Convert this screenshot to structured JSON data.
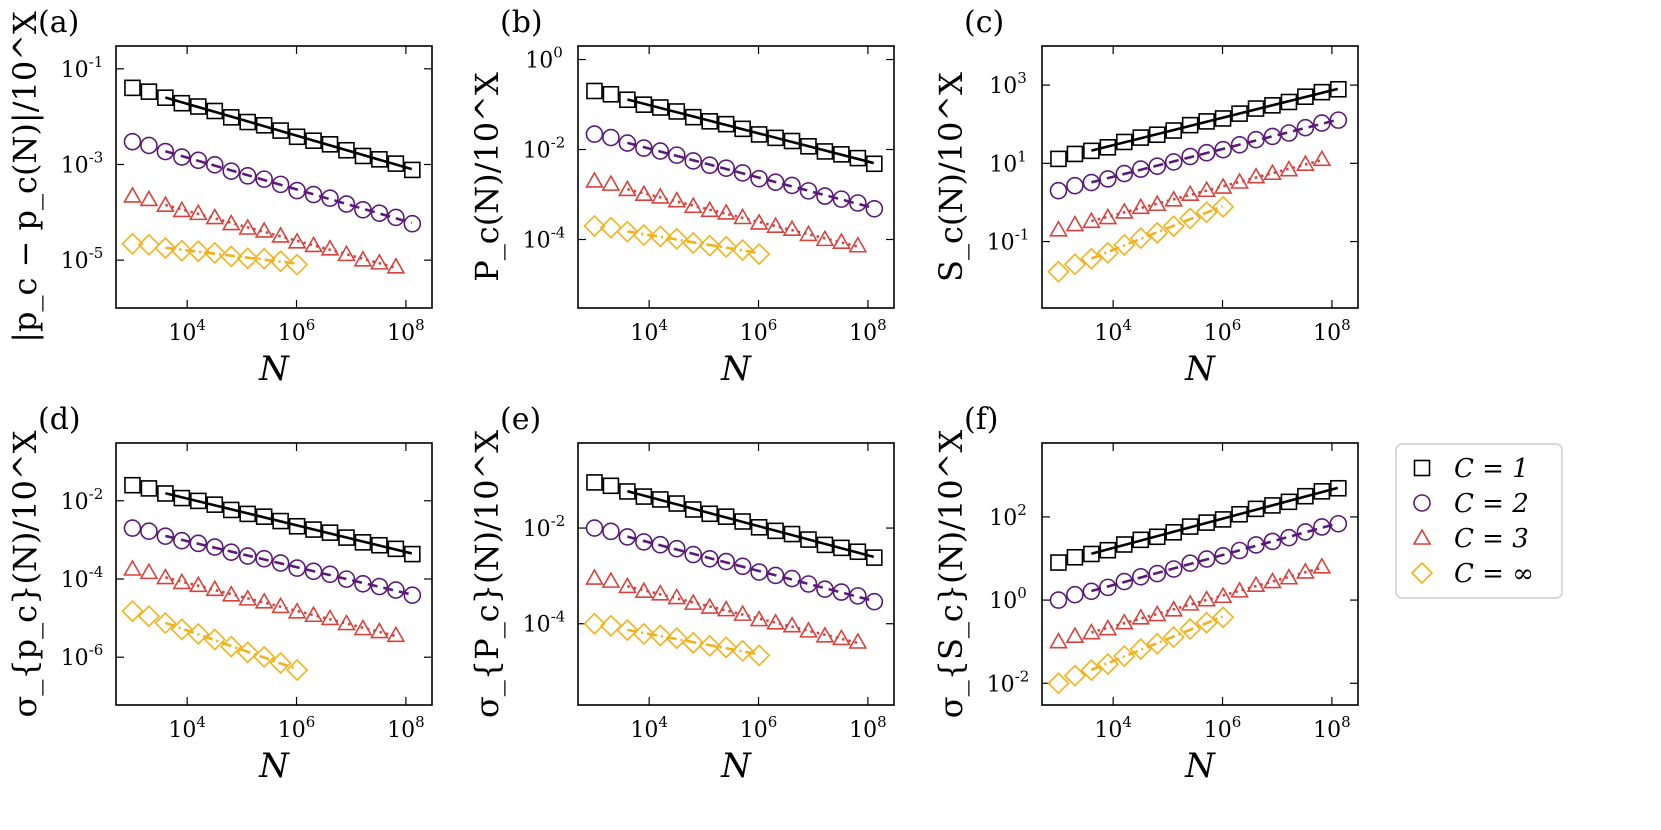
{
  "figure": {
    "x_tick_labels": [
      "10",
      "4",
      "10",
      "6",
      "10",
      "8"
    ],
    "legend": [
      {
        "key": "C1",
        "label": "C = 1",
        "color": "#000000",
        "marker": "square-icon"
      },
      {
        "key": "C2",
        "label": "C = 2",
        "color": "#5b1a7a",
        "marker": "circle-icon"
      },
      {
        "key": "C3",
        "label": "C = 3",
        "color": "#d9423c",
        "marker": "triangle-icon"
      },
      {
        "key": "Cinf",
        "label": "C = ∞",
        "color": "#f2b21c",
        "marker": "diamond-icon"
      }
    ]
  },
  "chart_data": [
    {
      "panel": "(a)",
      "type": "scatter",
      "yscale": "log",
      "xscale": "log",
      "xlabel": "N",
      "ylabel": "|p_c − p_c(N)|/10^X",
      "xlim": [
        500,
        300000000
      ],
      "ylim": [
        1e-06,
        0.3
      ],
      "ytick_labels": [
        [
          "10",
          "-1"
        ],
        [
          "10",
          "-3"
        ],
        [
          "10",
          "-5"
        ]
      ],
      "yticks": [
        0.1,
        0.001,
        1e-05
      ],
      "series": [
        {
          "key": "C1",
          "x_start": 1000,
          "x_end": 128000000,
          "y_start": 0.04,
          "y_end": 0.0008,
          "fit": "solid",
          "fit_from": 4000
        },
        {
          "key": "C2",
          "x_start": 1000,
          "x_end": 128000000,
          "y_start": 0.003,
          "y_end": 6e-05,
          "fit": "dashed",
          "fit_from": 4000
        },
        {
          "key": "C3",
          "x_start": 1000,
          "x_end": 64000000,
          "y_start": 0.00022,
          "y_end": 7e-06,
          "fit": "dotted",
          "fit_from": 4000
        },
        {
          "key": "Cinf",
          "x_start": 1000,
          "x_end": 1000000,
          "y_start": 2.2e-05,
          "y_end": 8.5e-06,
          "fit": "dashdot",
          "fit_from": 4000
        }
      ]
    },
    {
      "panel": "(b)",
      "type": "scatter",
      "yscale": "log",
      "xscale": "log",
      "xlabel": "N",
      "ylabel": "P_c(N)/10^X",
      "xlim": [
        500,
        300000000
      ],
      "ylim": [
        3e-06,
        2
      ],
      "ytick_labels": [
        [
          "10",
          "0"
        ],
        [
          "10",
          "-2"
        ],
        [
          "10",
          "-4"
        ]
      ],
      "yticks": [
        1,
        0.01,
        0.0001
      ],
      "series": [
        {
          "key": "C1",
          "x_start": 1000,
          "x_end": 128000000,
          "y_start": 0.2,
          "y_end": 0.005,
          "fit": "solid",
          "fit_from": 4000
        },
        {
          "key": "C2",
          "x_start": 1000,
          "x_end": 128000000,
          "y_start": 0.022,
          "y_end": 0.0005,
          "fit": "dashed",
          "fit_from": 4000
        },
        {
          "key": "C3",
          "x_start": 1000,
          "x_end": 64000000,
          "y_start": 0.002,
          "y_end": 7e-05,
          "fit": "dotted",
          "fit_from": 4000
        },
        {
          "key": "Cinf",
          "x_start": 1000,
          "x_end": 1000000,
          "y_start": 0.0002,
          "y_end": 5e-05,
          "fit": "dashdot",
          "fit_from": 4000
        }
      ]
    },
    {
      "panel": "(c)",
      "type": "scatter",
      "yscale": "log",
      "xscale": "log",
      "xlabel": "N",
      "ylabel": "S_c(N)/10^X",
      "xlim": [
        500,
        300000000
      ],
      "ylim": [
        0.002,
        10000
      ],
      "ytick_labels": [
        [
          "10",
          "3"
        ],
        [
          "10",
          "1"
        ],
        [
          "10",
          "-1"
        ]
      ],
      "yticks": [
        1000,
        10,
        0.1
      ],
      "series": [
        {
          "key": "C1",
          "x_start": 1000,
          "x_end": 128000000,
          "y_start": 13,
          "y_end": 800,
          "fit": "solid",
          "fit_from": 4000
        },
        {
          "key": "C2",
          "x_start": 1000,
          "x_end": 128000000,
          "y_start": 2,
          "y_end": 130,
          "fit": "dashed",
          "fit_from": 4000
        },
        {
          "key": "C3",
          "x_start": 1000,
          "x_end": 64000000,
          "y_start": 0.2,
          "y_end": 12,
          "fit": "dotted",
          "fit_from": 4000
        },
        {
          "key": "Cinf",
          "x_start": 1000,
          "x_end": 1000000,
          "y_start": 0.017,
          "y_end": 0.8,
          "fit": "dashdot",
          "fit_from": 4000
        }
      ]
    },
    {
      "panel": "(d)",
      "type": "scatter",
      "yscale": "log",
      "xscale": "log",
      "xlabel": "N",
      "ylabel": "σ_{p_c}(N)/10^X",
      "xlim": [
        500,
        300000000
      ],
      "ylim": [
        6e-08,
        0.3
      ],
      "ytick_labels": [
        [
          "10",
          "-2"
        ],
        [
          "10",
          "-4"
        ],
        [
          "10",
          "-6"
        ]
      ],
      "yticks": [
        0.01,
        0.0001,
        1e-06
      ],
      "series": [
        {
          "key": "C1",
          "x_start": 1000,
          "x_end": 128000000,
          "y_start": 0.025,
          "y_end": 0.00045,
          "fit": "solid",
          "fit_from": 4000
        },
        {
          "key": "C2",
          "x_start": 1000,
          "x_end": 128000000,
          "y_start": 0.002,
          "y_end": 4e-05,
          "fit": "dashed",
          "fit_from": 4000
        },
        {
          "key": "C3",
          "x_start": 1000,
          "x_end": 64000000,
          "y_start": 0.00018,
          "y_end": 3.5e-06,
          "fit": "dotted",
          "fit_from": 4000
        },
        {
          "key": "Cinf",
          "x_start": 1000,
          "x_end": 1000000,
          "y_start": 1.5e-05,
          "y_end": 5e-07,
          "fit": "dashdot",
          "fit_from": 4000
        }
      ]
    },
    {
      "panel": "(e)",
      "type": "scatter",
      "yscale": "log",
      "xscale": "log",
      "xlabel": "N",
      "ylabel": "σ_{P_c}(N)/10^X",
      "xlim": [
        500,
        300000000
      ],
      "ylim": [
        2e-06,
        0.6
      ],
      "ytick_labels": [
        [
          "10",
          "-2"
        ],
        [
          "10",
          "-4"
        ]
      ],
      "yticks": [
        0.01,
        0.0001
      ],
      "series": [
        {
          "key": "C1",
          "x_start": 1000,
          "x_end": 128000000,
          "y_start": 0.09,
          "y_end": 0.0025,
          "fit": "solid",
          "fit_from": 4000
        },
        {
          "key": "C2",
          "x_start": 1000,
          "x_end": 128000000,
          "y_start": 0.01,
          "y_end": 0.0003,
          "fit": "dashed",
          "fit_from": 4000
        },
        {
          "key": "C3",
          "x_start": 1000,
          "x_end": 64000000,
          "y_start": 0.0009,
          "y_end": 4e-05,
          "fit": "dotted",
          "fit_from": 4000
        },
        {
          "key": "Cinf",
          "x_start": 1000,
          "x_end": 1000000,
          "y_start": 0.0001,
          "y_end": 2.3e-05,
          "fit": "dashdot",
          "fit_from": 4000
        }
      ]
    },
    {
      "panel": "(f)",
      "type": "scatter",
      "yscale": "log",
      "xscale": "log",
      "xlabel": "N",
      "ylabel": "σ_{S_c}(N)/10^X",
      "xlim": [
        500,
        300000000
      ],
      "ylim": [
        0.003,
        6000
      ],
      "ytick_labels": [
        [
          "10",
          "2"
        ],
        [
          "10",
          "0"
        ],
        [
          "10",
          "-2"
        ]
      ],
      "yticks": [
        100,
        1,
        0.01
      ],
      "series": [
        {
          "key": "C1",
          "x_start": 1000,
          "x_end": 128000000,
          "y_start": 8,
          "y_end": 500,
          "fit": "solid",
          "fit_from": 4000
        },
        {
          "key": "C2",
          "x_start": 1000,
          "x_end": 128000000,
          "y_start": 1,
          "y_end": 70,
          "fit": "dashed",
          "fit_from": 4000
        },
        {
          "key": "C3",
          "x_start": 1000,
          "x_end": 64000000,
          "y_start": 0.1,
          "y_end": 6,
          "fit": "dotted",
          "fit_from": 4000
        },
        {
          "key": "Cinf",
          "x_start": 1000,
          "x_end": 1000000,
          "y_start": 0.01,
          "y_end": 0.4,
          "fit": "dashdot",
          "fit_from": 4000
        }
      ]
    }
  ]
}
